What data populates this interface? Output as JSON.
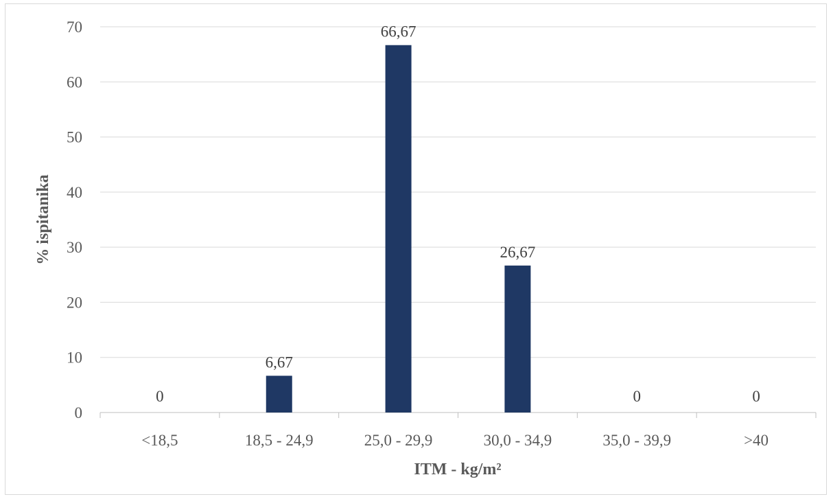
{
  "chart_data": {
    "type": "bar",
    "title": "",
    "xlabel": "ITM - kg/m²",
    "ylabel": "% ispitanika",
    "categories": [
      "<18,5",
      "18,5 - 24,9",
      "25,0 - 29,9",
      "30,0 - 34,9",
      "35,0 - 39,9",
      ">40"
    ],
    "values": [
      0,
      6.67,
      66.67,
      26.67,
      0,
      0
    ],
    "data_labels": [
      "0",
      "6,67",
      "66,67",
      "26,67",
      "0",
      "0"
    ],
    "yticks": [
      0,
      10,
      20,
      30,
      40,
      50,
      60,
      70
    ],
    "ylim": [
      0,
      70
    ],
    "grid": true,
    "legend": "none",
    "bar_color": "#1f3864"
  }
}
